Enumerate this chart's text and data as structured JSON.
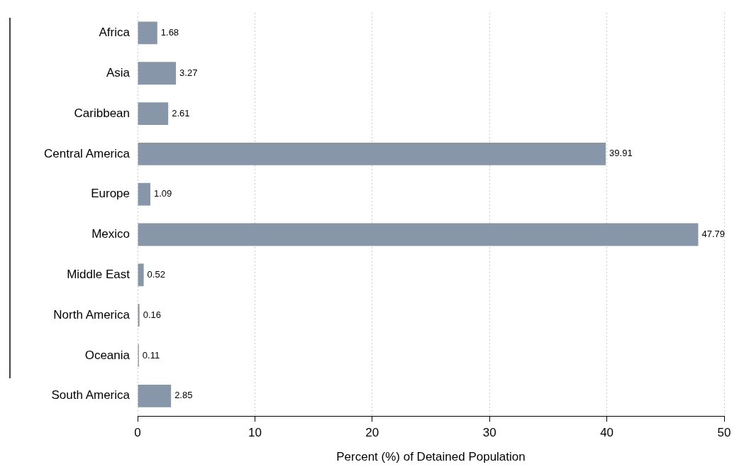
{
  "chart_data": {
    "type": "bar",
    "orientation": "horizontal",
    "xlabel": "Percent (%) of Detained Population",
    "categories": [
      "Africa",
      "Asia",
      "Caribbean",
      "Central America",
      "Europe",
      "Mexico",
      "Middle East",
      "North America",
      "Oceania",
      "South America"
    ],
    "values": [
      1.68,
      3.27,
      2.61,
      39.91,
      1.09,
      47.79,
      0.52,
      0.16,
      0.11,
      2.85
    ],
    "color": "#8796a9",
    "xlim": [
      0,
      50
    ],
    "xticks": [
      0,
      10,
      20,
      30,
      40,
      50
    ],
    "grid": "x",
    "data_labels": true,
    "legend": false
  }
}
